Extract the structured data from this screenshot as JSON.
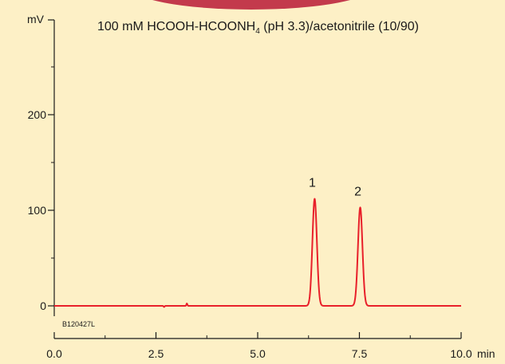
{
  "colors": {
    "background": "#fdf0c6",
    "trace": "#e8202a",
    "axis": "#1a1a1a",
    "arc": "#c33a4c"
  },
  "chart_data": {
    "type": "line",
    "title": "100 mM HCOOH-HCOONH",
    "title_subscript": "4",
    "title_suffix": " (pH 3.3)/acetonitrile (10/90)",
    "y_unit": "mV",
    "x_unit": "min",
    "xlim": [
      0,
      10
    ],
    "ylim": [
      -10,
      305
    ],
    "x_ticks": [
      {
        "value": 0,
        "label": "0.0"
      },
      {
        "value": 2.5,
        "label": "2.5"
      },
      {
        "value": 5.0,
        "label": "5.0"
      },
      {
        "value": 7.5,
        "label": "7.5"
      },
      {
        "value": 10.0,
        "label": "10.0"
      }
    ],
    "y_ticks": [
      {
        "value": 0,
        "label": "0"
      },
      {
        "value": 100,
        "label": "100"
      },
      {
        "value": 200,
        "label": "200"
      }
    ],
    "y_minor_ticks": [
      50,
      150,
      250
    ],
    "x_minor_ticks": [
      1.25,
      3.75,
      6.25,
      8.75
    ],
    "code_label": "B120427L",
    "baseline": 0,
    "peaks": [
      {
        "label": "1",
        "retention_time": 6.4,
        "height": 112
      },
      {
        "label": "2",
        "retention_time": 7.52,
        "height": 103
      }
    ],
    "minor_blips": [
      {
        "x": 2.7,
        "height": -1.2
      },
      {
        "x": 3.26,
        "height": 2.5
      }
    ]
  }
}
